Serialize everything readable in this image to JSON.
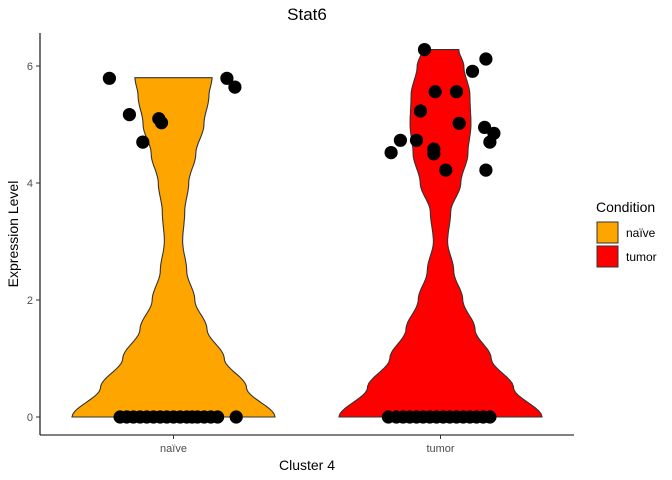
{
  "chart_data": {
    "type": "violin",
    "title": "Stat6",
    "xlabel": "Cluster 4",
    "ylabel": "Expression Level",
    "categories": [
      "naïve",
      "tumor"
    ],
    "ylim": [
      -0.28,
      6.6
    ],
    "yticks": [
      0,
      2,
      4,
      6
    ],
    "grid": false,
    "legend": {
      "title": "Condition",
      "position": "right",
      "entries": [
        {
          "label": "naïve",
          "color": "#FFA500"
        },
        {
          "label": "tumor",
          "color": "#FF0000"
        }
      ]
    },
    "series": [
      {
        "category": "naïve",
        "color": "#FFA500",
        "max": 5.8,
        "density": [
          [
            0,
            1.0
          ],
          [
            0.5,
            0.72
          ],
          [
            1.0,
            0.5
          ],
          [
            1.5,
            0.33
          ],
          [
            2.0,
            0.21
          ],
          [
            2.5,
            0.13
          ],
          [
            3.0,
            0.09
          ],
          [
            3.5,
            0.11
          ],
          [
            4.0,
            0.15
          ],
          [
            4.5,
            0.22
          ],
          [
            5.0,
            0.3
          ],
          [
            5.5,
            0.35
          ],
          [
            5.8,
            0.38
          ]
        ],
        "points": [
          {
            "x": -0.48,
            "y": 5.79
          },
          {
            "x": 0.4,
            "y": 5.79
          },
          {
            "x": 0.46,
            "y": 5.64
          },
          {
            "x": -0.33,
            "y": 5.17
          },
          {
            "x": -0.11,
            "y": 5.1
          },
          {
            "x": -0.09,
            "y": 5.03
          },
          {
            "x": -0.23,
            "y": 4.7
          },
          {
            "x": -0.4,
            "y": 0
          },
          {
            "x": -0.35,
            "y": 0
          },
          {
            "x": -0.3,
            "y": 0
          },
          {
            "x": -0.25,
            "y": 0
          },
          {
            "x": -0.2,
            "y": 0
          },
          {
            "x": -0.15,
            "y": 0
          },
          {
            "x": -0.1,
            "y": 0
          },
          {
            "x": -0.05,
            "y": 0
          },
          {
            "x": 0.0,
            "y": 0
          },
          {
            "x": 0.05,
            "y": 0
          },
          {
            "x": 0.1,
            "y": 0
          },
          {
            "x": 0.14,
            "y": 0
          },
          {
            "x": 0.18,
            "y": 0
          },
          {
            "x": 0.23,
            "y": 0
          },
          {
            "x": 0.28,
            "y": 0
          },
          {
            "x": 0.33,
            "y": 0
          },
          {
            "x": 0.47,
            "y": 0
          }
        ]
      },
      {
        "category": "tumor",
        "color": "#FF0000",
        "max": 6.28,
        "density": [
          [
            0,
            1.0
          ],
          [
            0.5,
            0.72
          ],
          [
            1.0,
            0.5
          ],
          [
            1.5,
            0.34
          ],
          [
            2.0,
            0.22
          ],
          [
            2.5,
            0.13
          ],
          [
            3.0,
            0.07
          ],
          [
            3.5,
            0.1
          ],
          [
            4.0,
            0.2
          ],
          [
            4.5,
            0.27
          ],
          [
            5.0,
            0.3
          ],
          [
            5.5,
            0.29
          ],
          [
            6.0,
            0.23
          ],
          [
            6.28,
            0.18
          ]
        ],
        "points": [
          {
            "x": -0.12,
            "y": 6.28
          },
          {
            "x": 0.34,
            "y": 6.12
          },
          {
            "x": 0.24,
            "y": 5.91
          },
          {
            "x": -0.04,
            "y": 5.56
          },
          {
            "x": 0.12,
            "y": 5.56
          },
          {
            "x": -0.15,
            "y": 5.23
          },
          {
            "x": 0.14,
            "y": 5.02
          },
          {
            "x": 0.33,
            "y": 4.95
          },
          {
            "x": 0.4,
            "y": 4.85
          },
          {
            "x": -0.3,
            "y": 4.73
          },
          {
            "x": -0.18,
            "y": 4.73
          },
          {
            "x": 0.37,
            "y": 4.7
          },
          {
            "x": -0.05,
            "y": 4.58
          },
          {
            "x": -0.05,
            "y": 4.5
          },
          {
            "x": -0.37,
            "y": 4.52
          },
          {
            "x": 0.04,
            "y": 4.22
          },
          {
            "x": 0.34,
            "y": 4.22
          },
          {
            "x": -0.39,
            "y": 0
          },
          {
            "x": -0.33,
            "y": 0
          },
          {
            "x": -0.28,
            "y": 0
          },
          {
            "x": -0.23,
            "y": 0
          },
          {
            "x": -0.18,
            "y": 0
          },
          {
            "x": -0.13,
            "y": 0
          },
          {
            "x": -0.08,
            "y": 0
          },
          {
            "x": -0.03,
            "y": 0
          },
          {
            "x": 0.02,
            "y": 0
          },
          {
            "x": 0.07,
            "y": 0
          },
          {
            "x": 0.12,
            "y": 0
          },
          {
            "x": 0.17,
            "y": 0
          },
          {
            "x": 0.22,
            "y": 0
          },
          {
            "x": 0.27,
            "y": 0
          },
          {
            "x": 0.32,
            "y": 0
          },
          {
            "x": 0.37,
            "y": 0
          }
        ]
      }
    ]
  }
}
